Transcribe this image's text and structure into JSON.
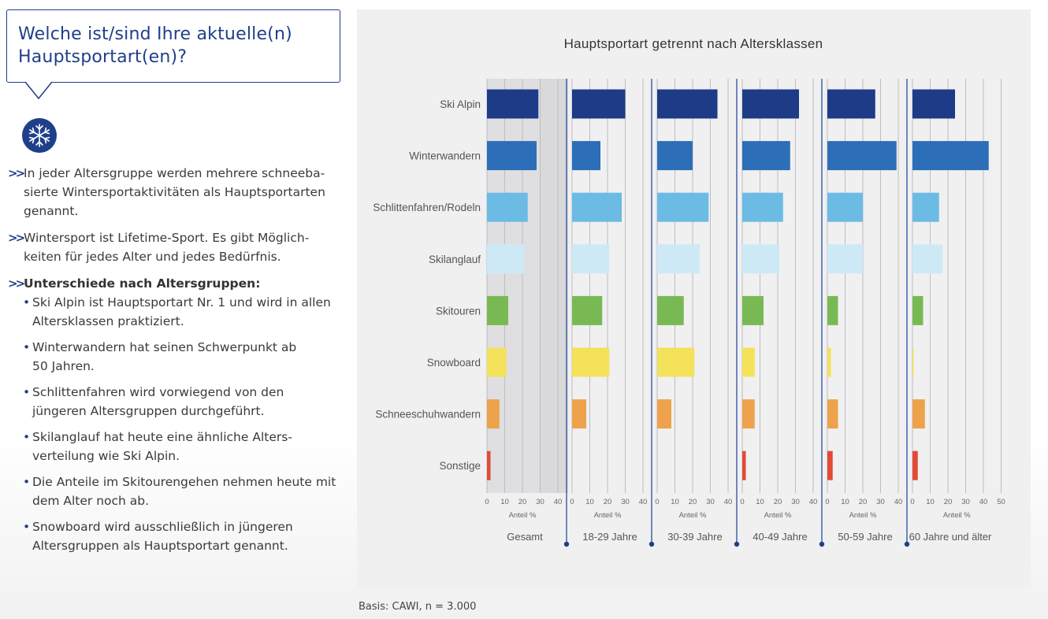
{
  "question": {
    "line1": "Welche ist/sind Ihre aktuelle(n)",
    "line2": "Hauptsportart(en)?"
  },
  "icon": "snowflake-icon",
  "bullets": [
    {
      "lines": [
        "In jeder Altersgruppe werden mehrere schneeba-",
        "sierte Wintersportaktivitäten als Hauptsportarten",
        "genannt."
      ]
    },
    {
      "lines": [
        "Wintersport ist Lifetime-Sport. Es gibt Möglich-",
        "keiten für jedes Alter und jedes Bedürfnis."
      ]
    },
    {
      "lines": [
        "Unterschiede nach Altersgruppen:"
      ]
    }
  ],
  "sub_bullets": [
    {
      "lines": [
        "Ski Alpin ist Hauptsportart Nr. 1 und wird in allen",
        "Altersklassen praktiziert."
      ]
    },
    {
      "lines": [
        "Winterwandern hat seinen Schwerpunkt ab",
        "50 Jahren."
      ]
    },
    {
      "lines": [
        "Schlittenfahren wird vorwiegend von den",
        "jüngeren Altersgruppen durchgeführt."
      ]
    },
    {
      "lines": [
        "Skilanglauf hat heute eine ähnliche Alters-",
        "verteilung wie Ski Alpin."
      ]
    },
    {
      "lines": [
        "Die Anteile im Skitourengehen nehmen heute mit",
        "dem Alter noch ab."
      ]
    },
    {
      "lines": [
        "Snowboard wird ausschließlich in jüngeren",
        "Altersgruppen als Hauptsportart genannt."
      ]
    }
  ],
  "basis": "Basis: CAWI, n = 3.000",
  "colors": {
    "accent": "#1f3f8a",
    "panel_bg": "#f0f0f1",
    "highlight_bg": "#d5d5d8",
    "categories": [
      "#1d3b86",
      "#2c6fb8",
      "#6bbbe5",
      "#cde9f6",
      "#79b954",
      "#f3e25a",
      "#eda24b",
      "#e24a35"
    ]
  },
  "chart_data": {
    "type": "bar",
    "orientation": "horizontal",
    "title": "Hauptsportart getrennt nach Altersklassen",
    "categories": [
      "Ski Alpin",
      "Winterwandern",
      "Schlittenfahren/Rodeln",
      "Skilanglauf",
      "Skitouren",
      "Snowboard",
      "Schneeschuhwandern",
      "Sonstige"
    ],
    "xlabel": "Anteil %",
    "grid": true,
    "panels": [
      {
        "name": "Gesamt",
        "xlim": [
          0,
          40
        ],
        "ticks": [
          0,
          10,
          20,
          30,
          40
        ],
        "highlight": true,
        "values": [
          29,
          28,
          23,
          21,
          12,
          11,
          7,
          2
        ]
      },
      {
        "name": "18-29 Jahre",
        "xlim": [
          0,
          40
        ],
        "ticks": [
          0,
          10,
          20,
          30,
          40
        ],
        "values": [
          30,
          16,
          28,
          21,
          17,
          21,
          8,
          0
        ]
      },
      {
        "name": "30-39 Jahre",
        "xlim": [
          0,
          40
        ],
        "ticks": [
          0,
          10,
          20,
          30,
          40
        ],
        "values": [
          34,
          20,
          29,
          24,
          15,
          21,
          8,
          0
        ]
      },
      {
        "name": "40-49 Jahre",
        "xlim": [
          0,
          40
        ],
        "ticks": [
          0,
          10,
          20,
          30,
          40
        ],
        "values": [
          32,
          27,
          23,
          21,
          12,
          7,
          7,
          2
        ]
      },
      {
        "name": "50-59 Jahre",
        "xlim": [
          0,
          40
        ],
        "ticks": [
          0,
          10,
          20,
          30,
          40
        ],
        "values": [
          27,
          39,
          20,
          20,
          6,
          2,
          6,
          3
        ]
      },
      {
        "name": "60 Jahre und älter",
        "xlim": [
          0,
          50
        ],
        "ticks": [
          0,
          10,
          20,
          30,
          40,
          50
        ],
        "values": [
          24,
          43,
          15,
          17,
          6,
          0.5,
          7,
          3
        ]
      }
    ]
  }
}
